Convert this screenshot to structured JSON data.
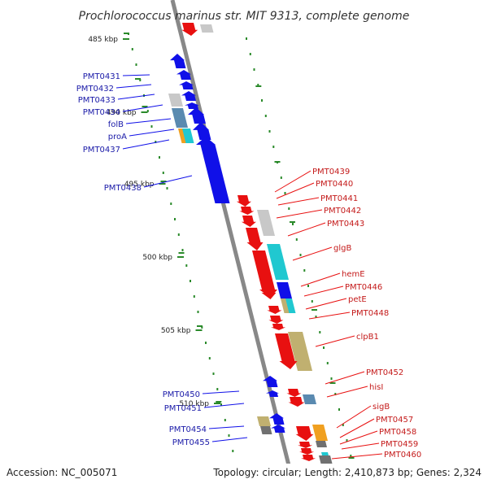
{
  "title": "Prochlorococcus marinus str. MIT 9313, complete genome",
  "footer": {
    "accession": "Accession: NC_005071",
    "summary": "Topology: circular; Length: 2,410,873 bp; Genes: 2,324"
  },
  "ticks": [
    "485 kbp",
    "490 kbp",
    "495 kbp",
    "500 kbp",
    "505 kbp",
    "510 kbp"
  ],
  "left_genes": [
    "PMT0431",
    "PMT0432",
    "PMT0433",
    "PMT0434",
    "folB",
    "proA",
    "PMT0437",
    "PMT0438",
    "PMT0450",
    "PMT0451",
    "PMT0454",
    "PMT0455"
  ],
  "right_genes": [
    "PMT0439",
    "PMT0440",
    "PMT0441",
    "PMT0442",
    "PMT0443",
    "glgB",
    "hemE",
    "PMT0446",
    "petE",
    "PMT0448",
    "clpB1",
    "PMT0452",
    "hisI",
    "sigB",
    "PMT0457",
    "PMT0458",
    "PMT0459",
    "PMT0460"
  ],
  "colors": {
    "forward": "#1010e8",
    "reverse": "#e81010",
    "cyan": "#20c8d0",
    "steel": "#5a8ab0",
    "orange": "#f0a020",
    "khaki": "#c0b070",
    "gray": "#c8c8c8",
    "darkgray": "#707070",
    "backbone": "#888888",
    "gc": "#2a8a2a"
  }
}
